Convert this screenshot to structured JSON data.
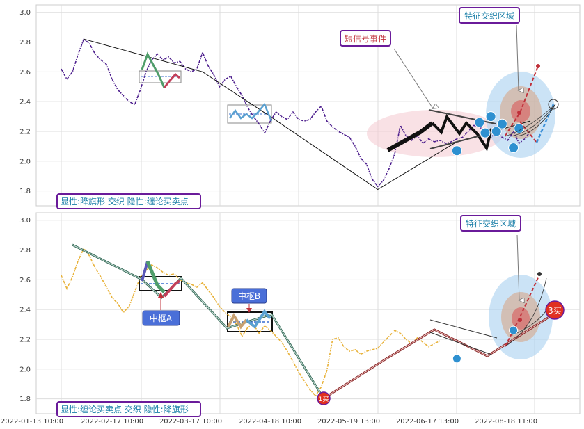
{
  "chart_data": {
    "type": "line",
    "x_tick_labels": [
      "2022-01-13 10:00",
      "2022-02-17 10:00",
      "2022-03-17 10:00",
      "2022-04-18 10:00",
      "2022-05-19 13:00",
      "2022-06-17 13:00",
      "2022-08-18 11:00"
    ],
    "y_ticks": [
      "1.8",
      "2.0",
      "2.2",
      "2.4",
      "2.6",
      "2.8",
      "3.0"
    ],
    "ylim": [
      1.7,
      3.05
    ],
    "grid": true,
    "colors": {
      "top_price": "#4b1c8c",
      "bottom_price": "#e8b23a",
      "box_border": "#6a1b9a",
      "box_text": "#1a7fa8",
      "hub_label_bg": "#4a6fd8",
      "point_blue": "#2e90d0",
      "buy_red": "#e03020"
    },
    "panels": [
      {
        "legend": "显性:降旗形 交织 隐性:缠论买卖点",
        "callouts": [
          "短信号事件",
          "特征交织区域"
        ],
        "price_series": [
          [
            1,
            2.62
          ],
          [
            2,
            2.55
          ],
          [
            3,
            2.6
          ],
          [
            4,
            2.72
          ],
          [
            5,
            2.82
          ],
          [
            6,
            2.79
          ],
          [
            7,
            2.72
          ],
          [
            8,
            2.68
          ],
          [
            9,
            2.65
          ],
          [
            10,
            2.55
          ],
          [
            11,
            2.48
          ],
          [
            12,
            2.44
          ],
          [
            13,
            2.4
          ],
          [
            14,
            2.38
          ],
          [
            15,
            2.48
          ],
          [
            16,
            2.6
          ],
          [
            17,
            2.68
          ],
          [
            18,
            2.72
          ],
          [
            19,
            2.68
          ],
          [
            20,
            2.7
          ],
          [
            21,
            2.66
          ],
          [
            22,
            2.67
          ],
          [
            23,
            2.62
          ],
          [
            24,
            2.6
          ],
          [
            25,
            2.62
          ],
          [
            26,
            2.73
          ],
          [
            27,
            2.64
          ],
          [
            28,
            2.58
          ],
          [
            29,
            2.5
          ],
          [
            30,
            2.55
          ],
          [
            31,
            2.57
          ],
          [
            32,
            2.5
          ],
          [
            33,
            2.44
          ],
          [
            34,
            2.36
          ],
          [
            35,
            2.3
          ],
          [
            36,
            2.25
          ],
          [
            37,
            2.19
          ],
          [
            38,
            2.27
          ],
          [
            39,
            2.33
          ],
          [
            40,
            2.3
          ],
          [
            41,
            2.28
          ],
          [
            42,
            2.33
          ],
          [
            43,
            2.28
          ],
          [
            44,
            2.27
          ],
          [
            45,
            2.28
          ],
          [
            46,
            2.33
          ],
          [
            47,
            2.37
          ],
          [
            48,
            2.27
          ],
          [
            49,
            2.23
          ],
          [
            50,
            2.2
          ],
          [
            51,
            2.18
          ],
          [
            52,
            2.16
          ],
          [
            53,
            2.1
          ],
          [
            54,
            2.02
          ],
          [
            55,
            1.98
          ],
          [
            56,
            1.88
          ],
          [
            57,
            1.83
          ],
          [
            58,
            1.87
          ],
          [
            59,
            1.95
          ],
          [
            60,
            2.05
          ],
          [
            61,
            2.24
          ],
          [
            62,
            2.17
          ],
          [
            63,
            2.14
          ],
          [
            64,
            2.17
          ],
          [
            65,
            2.12
          ],
          [
            66,
            2.15
          ],
          [
            67,
            2.13
          ],
          [
            68,
            2.14
          ],
          [
            69,
            2.12
          ],
          [
            70,
            2.13
          ],
          [
            71,
            2.15
          ],
          [
            72,
            2.16
          ],
          [
            73,
            2.2
          ],
          [
            74,
            2.24
          ],
          [
            75,
            2.23
          ],
          [
            76,
            2.2
          ],
          [
            77,
            2.16
          ],
          [
            78,
            2.19
          ],
          [
            79,
            2.16
          ],
          [
            80,
            2.14
          ],
          [
            81,
            2.2
          ],
          [
            82,
            2.12
          ],
          [
            83,
            2.15
          ],
          [
            84,
            2.2
          ]
        ],
        "trend_line": [
          [
            5,
            2.82
          ],
          [
            26,
            2.6
          ],
          [
            38,
            2.3
          ],
          [
            57,
            1.81
          ],
          [
            71,
            2.13
          ],
          [
            84,
            2.27
          ]
        ],
        "pivot_points": [
          [
            71,
            2.07
          ],
          [
            75,
            2.26
          ],
          [
            76,
            2.19
          ],
          [
            77,
            2.3
          ],
          [
            78,
            2.2
          ],
          [
            79,
            2.25
          ],
          [
            81,
            2.09
          ],
          [
            82,
            2.22
          ]
        ],
        "prediction": [
          [
            84,
            2.27
          ],
          [
            86,
            2.43
          ],
          [
            88,
            2.13
          ],
          [
            90,
            2.39
          ]
        ]
      },
      {
        "legend": "显性:缠论买卖点 交织 隐性:降旗形",
        "callouts": [
          "特征交织区域",
          "中枢A",
          "中枢B",
          "3买",
          "1买"
        ],
        "price_series": [
          [
            1,
            2.63
          ],
          [
            2,
            2.54
          ],
          [
            3,
            2.62
          ],
          [
            4,
            2.73
          ],
          [
            5,
            2.81
          ],
          [
            6,
            2.76
          ],
          [
            7,
            2.68
          ],
          [
            8,
            2.62
          ],
          [
            9,
            2.55
          ],
          [
            10,
            2.48
          ],
          [
            11,
            2.44
          ],
          [
            12,
            2.38
          ],
          [
            13,
            2.42
          ],
          [
            14,
            2.52
          ],
          [
            15,
            2.62
          ],
          [
            16,
            2.66
          ],
          [
            17,
            2.7
          ],
          [
            18,
            2.68
          ],
          [
            19,
            2.65
          ],
          [
            20,
            2.63
          ],
          [
            21,
            2.64
          ],
          [
            22,
            2.6
          ],
          [
            23,
            2.58
          ],
          [
            24,
            2.57
          ],
          [
            25,
            2.55
          ],
          [
            26,
            2.58
          ],
          [
            27,
            2.53
          ],
          [
            28,
            2.48
          ],
          [
            29,
            2.42
          ],
          [
            30,
            2.38
          ],
          [
            31,
            2.35
          ],
          [
            32,
            2.3
          ],
          [
            33,
            2.22
          ],
          [
            34,
            2.28
          ],
          [
            35,
            2.3
          ],
          [
            36,
            2.24
          ],
          [
            37,
            2.29
          ],
          [
            38,
            2.26
          ],
          [
            39,
            2.22
          ],
          [
            40,
            2.18
          ],
          [
            41,
            2.12
          ],
          [
            42,
            2.05
          ],
          [
            43,
            1.98
          ],
          [
            44,
            1.92
          ],
          [
            45,
            1.86
          ],
          [
            46,
            1.82
          ],
          [
            47,
            1.88
          ],
          [
            48,
            1.99
          ],
          [
            49,
            2.2
          ],
          [
            50,
            2.21
          ],
          [
            51,
            2.15
          ],
          [
            52,
            2.12
          ],
          [
            53,
            2.13
          ],
          [
            54,
            2.1
          ],
          [
            55,
            2.12
          ],
          [
            56,
            2.13
          ],
          [
            57,
            2.14
          ],
          [
            58,
            2.18
          ],
          [
            59,
            2.22
          ],
          [
            60,
            2.26
          ],
          [
            61,
            2.24
          ],
          [
            62,
            2.2
          ],
          [
            63,
            2.17
          ],
          [
            64,
            2.21
          ],
          [
            65,
            2.18
          ],
          [
            66,
            2.15
          ],
          [
            67,
            2.17
          ],
          [
            68,
            2.19
          ]
        ],
        "trend_line": [
          [
            5,
            2.82
          ],
          [
            26,
            2.6
          ],
          [
            38,
            2.3
          ],
          [
            57,
            1.81
          ],
          [
            71,
            2.07
          ],
          [
            81,
            2.26
          ],
          [
            88,
            2.08
          ],
          [
            95,
            2.35
          ]
        ],
        "buy_points": [
          {
            "label": "1买",
            "x": 57,
            "y": 1.81
          },
          {
            "label": "3买",
            "x": 95,
            "y": 2.39
          }
        ],
        "pivot_points": [
          [
            71,
            2.07
          ],
          [
            81,
            2.26
          ]
        ]
      }
    ]
  }
}
